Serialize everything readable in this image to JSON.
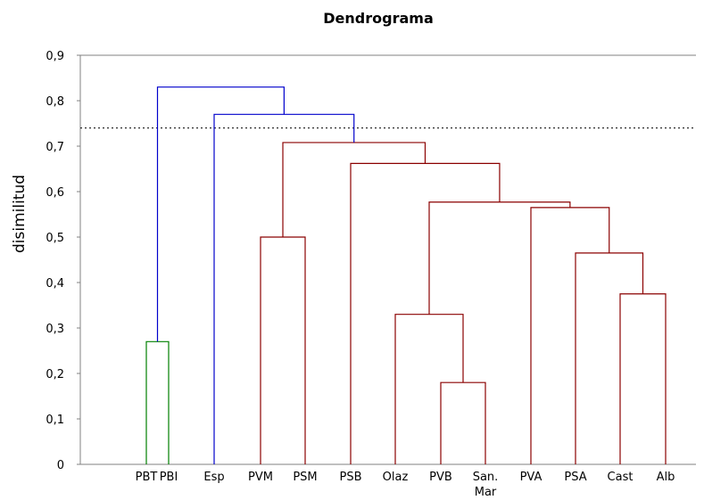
{
  "chart_data": {
    "type": "dendrogram",
    "title": "Dendrograma",
    "ylabel": "disimilitud",
    "ylim": [
      0,
      0.9
    ],
    "yticks": [
      "0",
      "0,1",
      "0,2",
      "0,3",
      "0,4",
      "0,5",
      "0,6",
      "0,7",
      "0,8",
      "0,9"
    ],
    "cut_line": 0.74,
    "colors": {
      "green": "#008000",
      "blue": "#0000cc",
      "red": "#8b0000",
      "axis": "#808080"
    },
    "leaves": [
      {
        "id": "PBT",
        "label": "PBT"
      },
      {
        "id": "PBI",
        "label": "PBI"
      },
      {
        "id": "Esp",
        "label": "Esp"
      },
      {
        "id": "PVM",
        "label": "PVM"
      },
      {
        "id": "PSM",
        "label": "PSM"
      },
      {
        "id": "PSB",
        "label": "PSB"
      },
      {
        "id": "Olaz",
        "label": "Olaz"
      },
      {
        "id": "PVB",
        "label": "PVB"
      },
      {
        "id": "SanMar",
        "label": "San.\nMar"
      },
      {
        "id": "PVA",
        "label": "PVA"
      },
      {
        "id": "PSA",
        "label": "PSA"
      },
      {
        "id": "Cast",
        "label": "Cast"
      },
      {
        "id": "Alb",
        "label": "Alb"
      }
    ],
    "merges": [
      {
        "id": "m1",
        "left": "PVB",
        "right": "SanMar",
        "height": 0.18,
        "color": "red"
      },
      {
        "id": "m2",
        "left": "Olaz",
        "right": "m1",
        "height": 0.33,
        "color": "red"
      },
      {
        "id": "m3",
        "left": "Cast",
        "right": "Alb",
        "height": 0.375,
        "color": "red"
      },
      {
        "id": "m4",
        "left": "PSA",
        "right": "m3",
        "height": 0.465,
        "color": "red"
      },
      {
        "id": "m5",
        "left": "PVA",
        "right": "m4",
        "height": 0.565,
        "color": "red"
      },
      {
        "id": "m6",
        "left": "m2",
        "right": "m5",
        "height": 0.577,
        "color": "red"
      },
      {
        "id": "m7",
        "left": "PSB",
        "right": "m6",
        "height": 0.662,
        "color": "red"
      },
      {
        "id": "m8",
        "left": "PVM",
        "right": "PSM",
        "height": 0.5,
        "color": "red"
      },
      {
        "id": "m9",
        "left": "m8",
        "right": "m7",
        "height": 0.708,
        "color": "red"
      },
      {
        "id": "m10",
        "left": "Esp",
        "right": "m9",
        "height": 0.77,
        "color": "blue"
      },
      {
        "id": "m11",
        "left": "PBT",
        "right": "PBI",
        "height": 0.27,
        "color": "green"
      },
      {
        "id": "m12",
        "left": "m11",
        "right": "m10",
        "height": 0.83,
        "color": "blue"
      }
    ]
  }
}
